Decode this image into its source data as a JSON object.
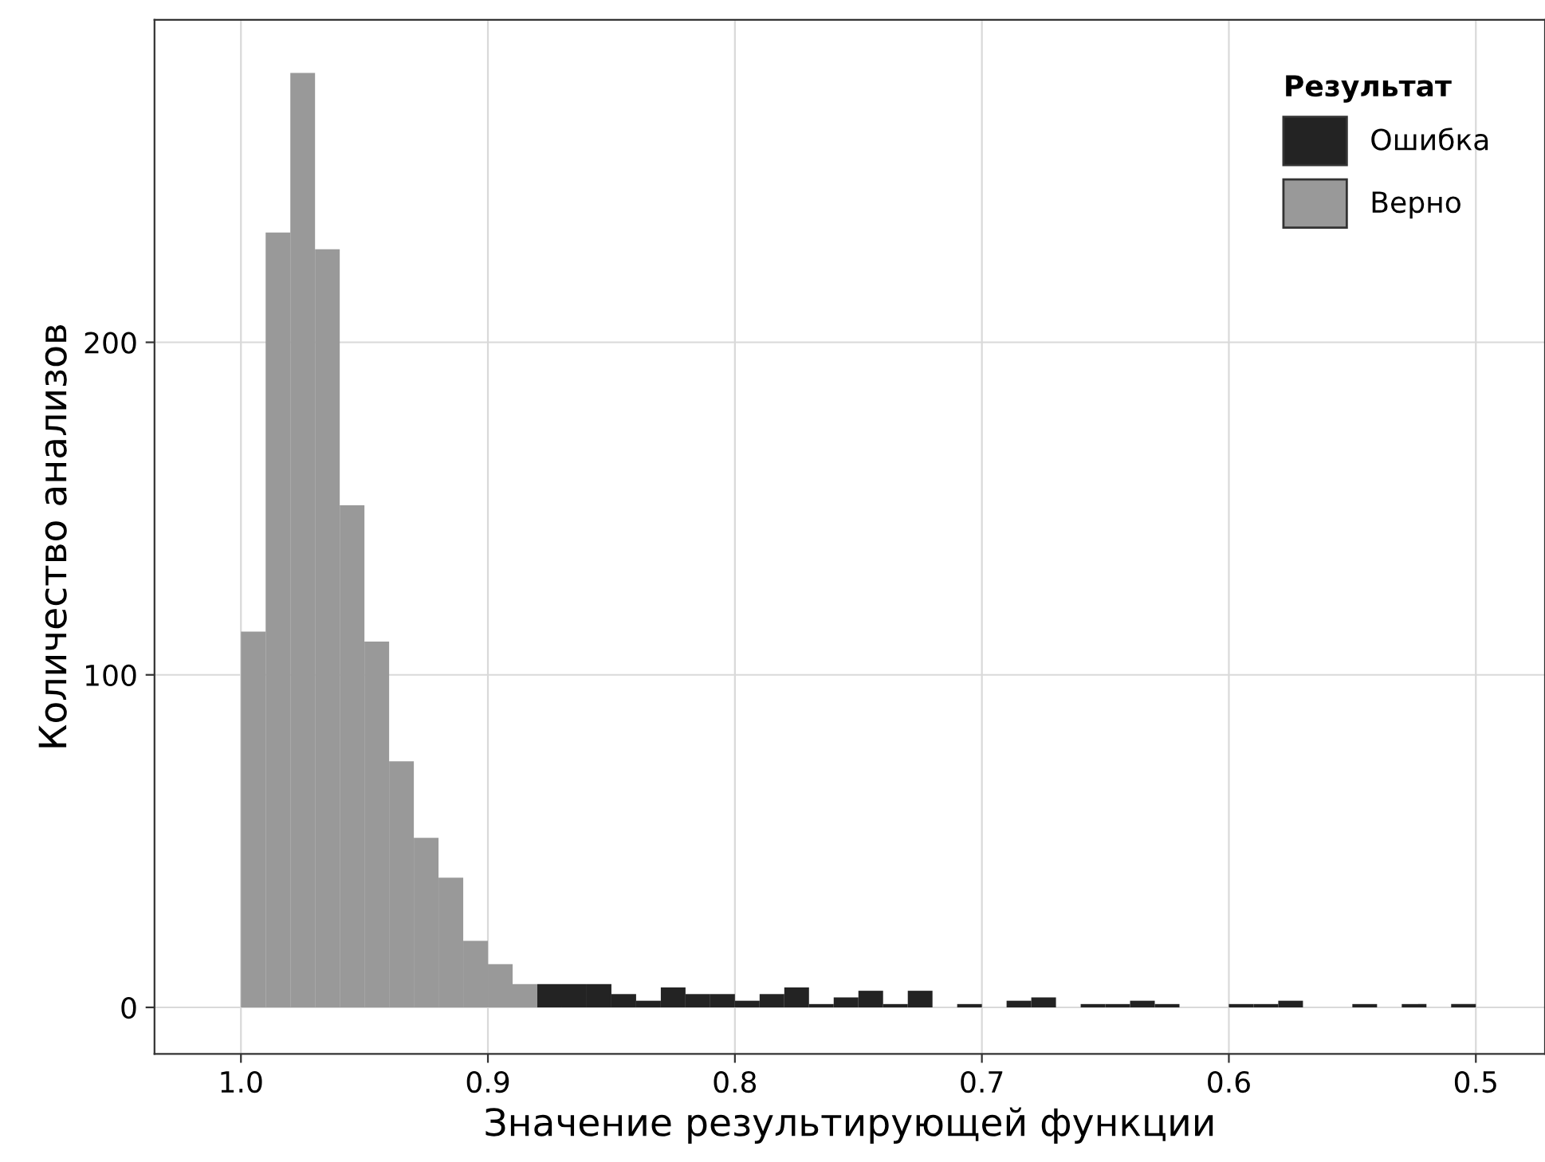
{
  "chart_data": {
    "type": "histogram",
    "xlabel": "Значение результирующей функции",
    "ylabel": "Количество анализов",
    "legend_title": "Результат",
    "bins": [
      1.0,
      0.99,
      0.98,
      0.97,
      0.96,
      0.95,
      0.94,
      0.93,
      0.92,
      0.91,
      0.9,
      0.89,
      0.88,
      0.87,
      0.86,
      0.85,
      0.84,
      0.83,
      0.82,
      0.81,
      0.8,
      0.79,
      0.78,
      0.77,
      0.76,
      0.75,
      0.74,
      0.73,
      0.72,
      0.71,
      0.7,
      0.69,
      0.68,
      0.67,
      0.66,
      0.65,
      0.64,
      0.63,
      0.62,
      0.61,
      0.6,
      0.59,
      0.58,
      0.57,
      0.56,
      0.55,
      0.54,
      0.53,
      0.52,
      0.51,
      0.5
    ],
    "series": [
      {
        "name": "Ошибка",
        "color": "#232323",
        "values": [
          null,
          null,
          null,
          null,
          null,
          null,
          null,
          null,
          null,
          null,
          null,
          null,
          7,
          7,
          7,
          4,
          2,
          6,
          4,
          4,
          2,
          4,
          6,
          1,
          3,
          5,
          1,
          5,
          0,
          1,
          0,
          2,
          3,
          0,
          1,
          1,
          2,
          1,
          0,
          0,
          1,
          1,
          2,
          0,
          0,
          1,
          0,
          1,
          0,
          1
        ]
      },
      {
        "name": "Верно",
        "color": "#999999",
        "values": [
          113,
          233,
          281,
          228,
          151,
          110,
          74,
          51,
          39,
          20,
          13,
          7,
          null,
          null,
          null,
          null,
          null,
          null,
          null,
          null,
          null,
          null,
          null,
          null,
          null,
          null,
          null,
          null,
          null,
          null,
          null,
          null,
          null,
          null,
          null,
          null,
          null,
          null,
          null,
          null,
          null,
          null,
          null,
          null,
          null,
          null,
          null,
          null,
          null,
          null
        ]
      }
    ],
    "xlim": [
      1.035,
      0.472
    ],
    "xticks": [
      {
        "value": 1.0,
        "label": "1.0"
      },
      0.9,
      0.8,
      0.7,
      0.6,
      0.5
    ],
    "ylim": [
      -14,
      297
    ],
    "yticks": [
      0,
      100,
      200
    ],
    "grid": true,
    "legend": "top right"
  }
}
